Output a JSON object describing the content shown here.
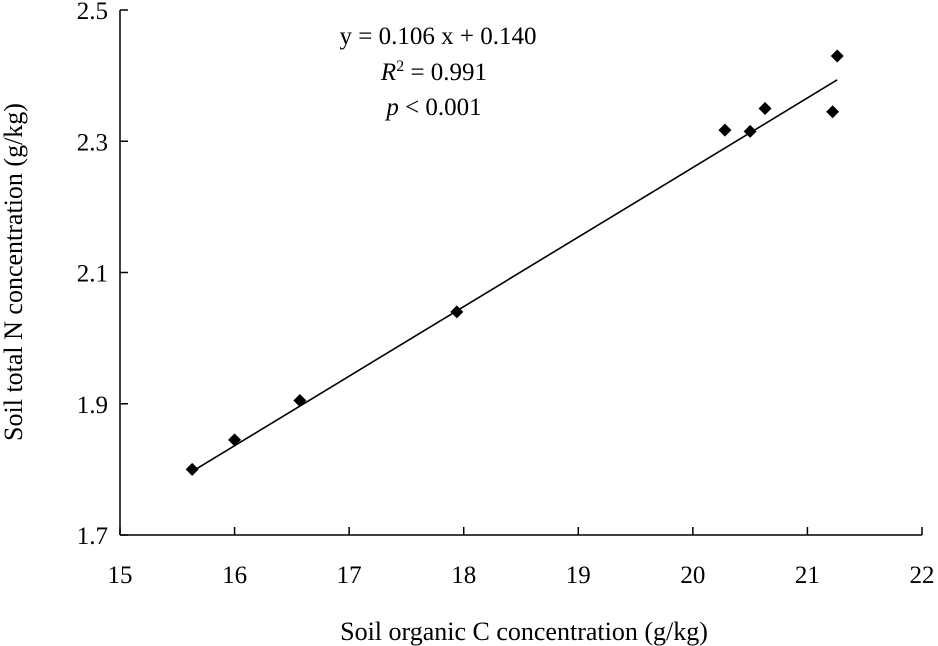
{
  "chart_data": {
    "type": "scatter",
    "xlabel": "Soil organic C concentration (g/kg)",
    "ylabel": "Soil total N concentration (g/kg)",
    "xlim": [
      15,
      22
    ],
    "ylim": [
      1.7,
      2.5
    ],
    "xticks": [
      "15",
      "16",
      "17",
      "18",
      "19",
      "20",
      "21",
      "22"
    ],
    "yticks": [
      "1.7",
      "1.9",
      "2.1",
      "2.3",
      "2.5"
    ],
    "grid": false,
    "legend": "none",
    "marker": "diamond",
    "points": [
      {
        "x": 15.63,
        "y": 1.8
      },
      {
        "x": 16.0,
        "y": 1.845
      },
      {
        "x": 16.57,
        "y": 1.905
      },
      {
        "x": 17.94,
        "y": 2.04
      },
      {
        "x": 20.28,
        "y": 2.317
      },
      {
        "x": 20.5,
        "y": 2.315
      },
      {
        "x": 20.63,
        "y": 2.35
      },
      {
        "x": 21.22,
        "y": 2.345
      },
      {
        "x": 21.26,
        "y": 2.43
      }
    ],
    "fit": {
      "slope": 0.106,
      "intercept": 0.14,
      "x_range": [
        15.63,
        21.26
      ]
    },
    "annotation": {
      "equation": "y = 0.106 x + 0.140",
      "r2_symbol": "R",
      "r2_superscript": "2",
      "r2_value": " = 0.991",
      "p_symbol": "p",
      "p_value": " < 0.001"
    }
  }
}
